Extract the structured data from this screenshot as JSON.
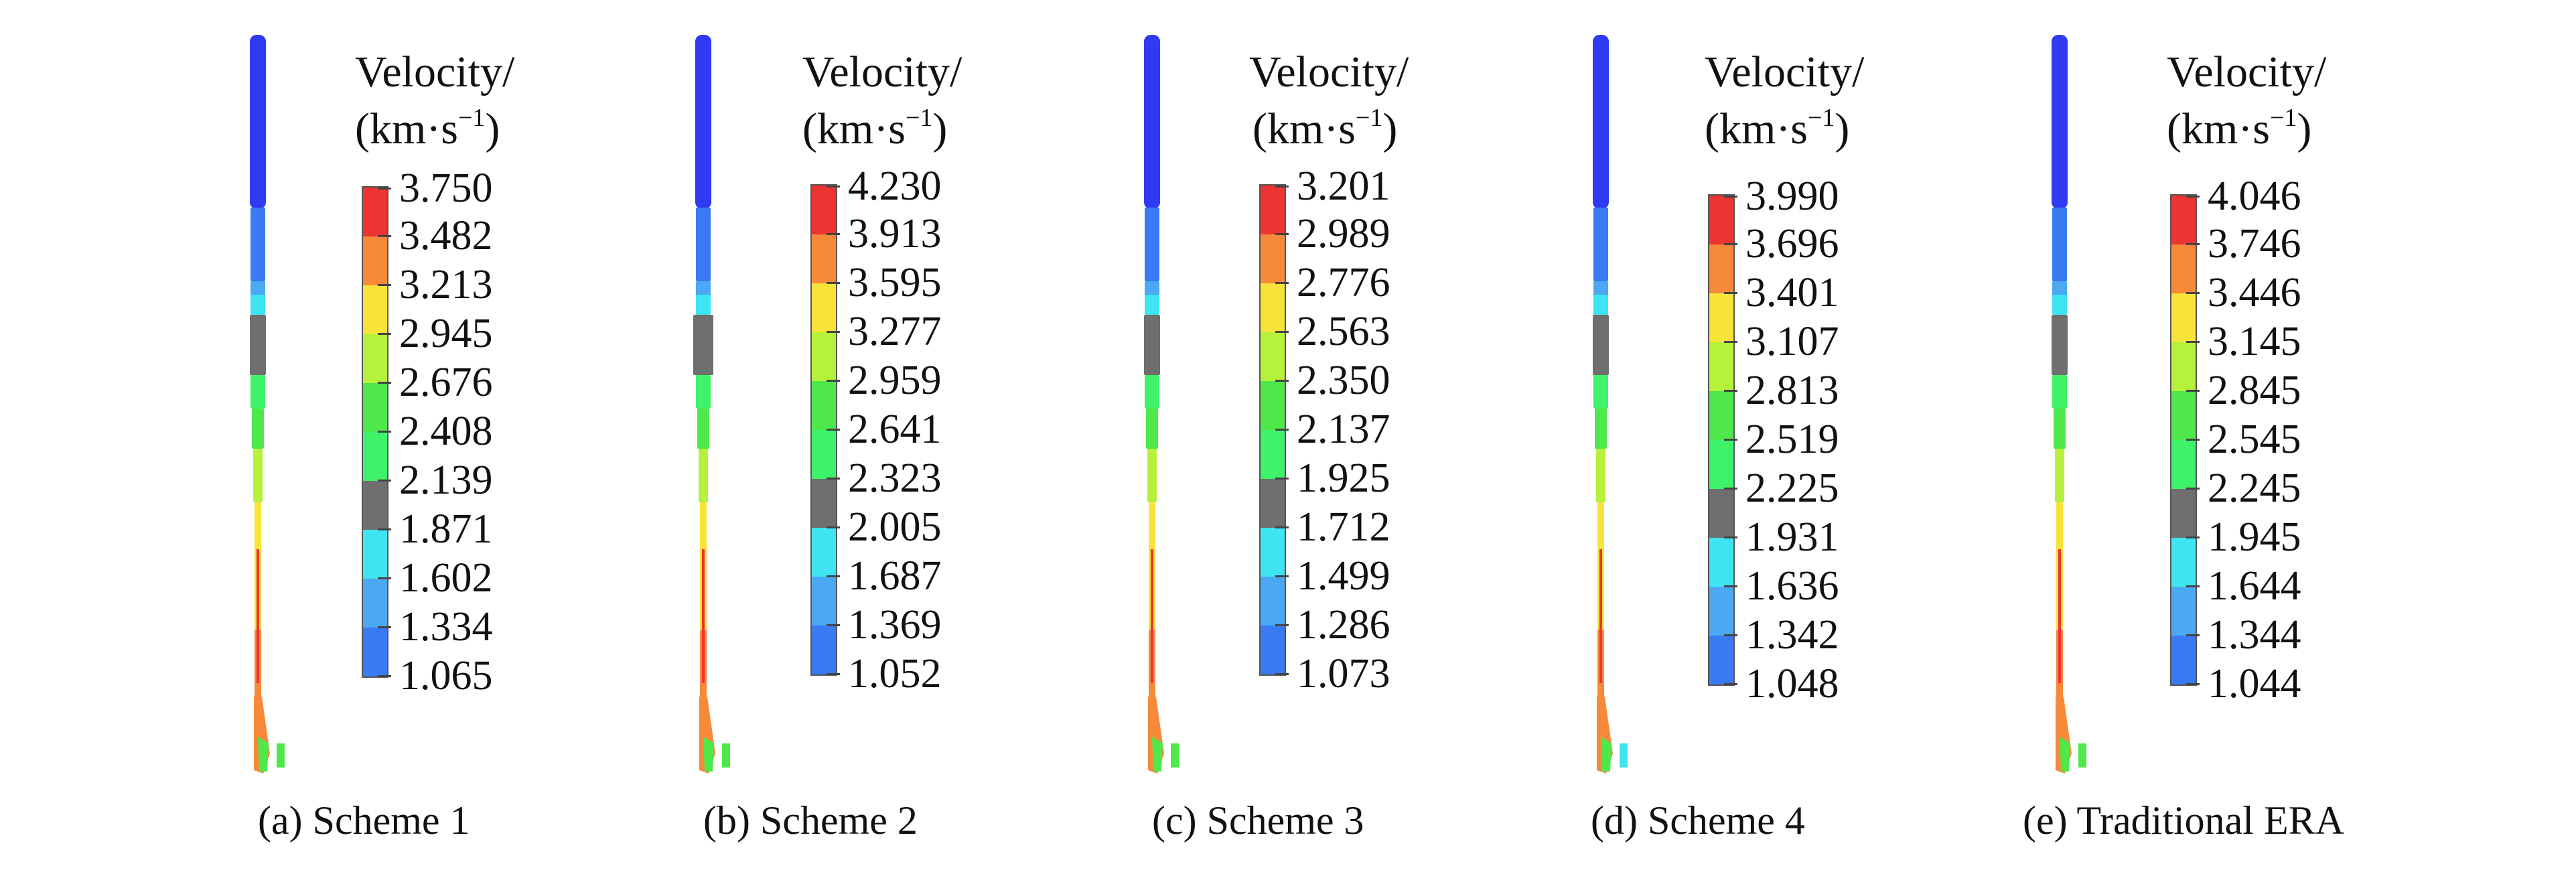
{
  "colors": {
    "segment_palette_top_to_bottom": [
      "#ee3333",
      "#f78a3a",
      "#f7e33a",
      "#b6f13c",
      "#4ee84a",
      "#3ef26a",
      "#6f6f6f",
      "#3fe4f2",
      "#4aa9f2",
      "#3a7af2",
      "#2e3bf2"
    ],
    "tick": "#444444",
    "bar_border": "#555555"
  },
  "legend_title_line1": "Velocity/",
  "legend_title_line2_text": "(km·s",
  "legend_title_exponent": "−1",
  "legend_title_close": ")",
  "panels": [
    {
      "caption": "(a) Scheme 1",
      "labels": [
        "3.750",
        "3.482",
        "3.213",
        "2.945",
        "2.676",
        "2.408",
        "2.139",
        "1.871",
        "1.602",
        "1.334",
        "1.065"
      ]
    },
    {
      "caption": "(b) Scheme 2",
      "labels": [
        "4.230",
        "3.913",
        "3.595",
        "3.277",
        "2.959",
        "2.641",
        "2.323",
        "2.005",
        "1.687",
        "1.369",
        "1.052"
      ]
    },
    {
      "caption": "(c) Scheme 3",
      "labels": [
        "3.201",
        "2.989",
        "2.776",
        "2.563",
        "2.350",
        "2.137",
        "1.925",
        "1.712",
        "1.499",
        "1.286",
        "1.073"
      ]
    },
    {
      "caption": "(d) Scheme 4",
      "labels": [
        "3.990",
        "3.696",
        "3.401",
        "3.107",
        "2.813",
        "2.519",
        "2.225",
        "1.931",
        "1.636",
        "1.342",
        "1.048"
      ]
    },
    {
      "caption": "(e) Traditional ERA",
      "labels": [
        "4.046",
        "3.746",
        "3.446",
        "3.145",
        "2.845",
        "2.545",
        "2.245",
        "1.945",
        "1.644",
        "1.344",
        "1.044"
      ]
    }
  ]
}
